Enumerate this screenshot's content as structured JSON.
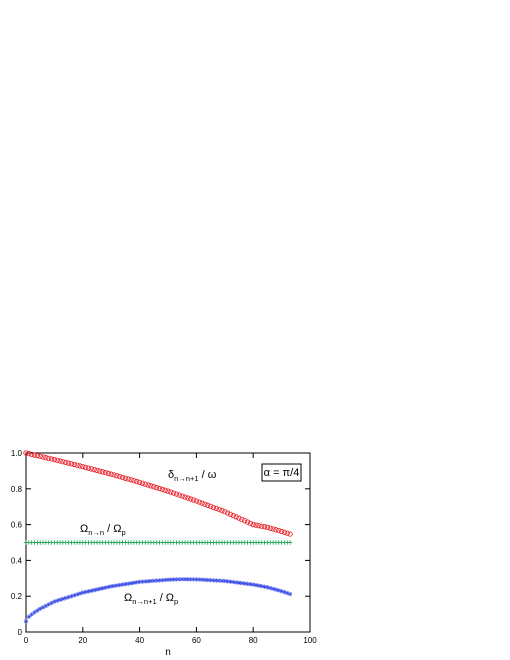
{
  "chart_data": {
    "type": "scatter",
    "title": "",
    "xlabel": "n",
    "ylabel": "",
    "xlim": [
      0,
      100
    ],
    "ylim": [
      0,
      1
    ],
    "x_ticks": [
      0,
      20,
      40,
      60,
      80,
      100
    ],
    "y_ticks": [
      0,
      0.2,
      0.4,
      0.6,
      0.8,
      1.0
    ],
    "x_tick_labels": [
      "0",
      "20",
      "40",
      "60",
      "80",
      "100"
    ],
    "y_tick_labels": [
      "0",
      "0.2",
      "0.4",
      "0.6",
      "0.8",
      "1.0"
    ],
    "grid": false,
    "legend": "none",
    "annotation_box": "α = π/4",
    "series": [
      {
        "label_main": "δ",
        "label_sub": "n→n+1",
        "label_rest": " / ω",
        "marker": "circle",
        "color": "#e8141c",
        "x": [
          0,
          10,
          20,
          30,
          40,
          50,
          60,
          70,
          80,
          85,
          90,
          93
        ],
        "y": [
          1.0,
          0.963,
          0.924,
          0.882,
          0.836,
          0.787,
          0.732,
          0.672,
          0.6,
          0.585,
          0.562,
          0.547
        ]
      },
      {
        "label_main": "Ω",
        "label_sub": "n→n",
        "label_rest": " / Ω",
        "label_sub2": "p",
        "marker": "plus",
        "color": "#14a050",
        "x": [
          0,
          93
        ],
        "y": [
          0.5,
          0.5
        ]
      },
      {
        "label_main": "Ω",
        "label_sub": "n→n+1",
        "label_rest": " / Ω",
        "label_sub2": "p",
        "marker": "star",
        "color": "#3c50e6",
        "x": [
          0,
          1,
          3,
          5,
          10,
          20,
          30,
          40,
          50,
          55,
          60,
          70,
          80,
          85,
          90,
          93
        ],
        "y": [
          0.06,
          0.085,
          0.11,
          0.13,
          0.17,
          0.22,
          0.255,
          0.28,
          0.292,
          0.295,
          0.294,
          0.285,
          0.265,
          0.25,
          0.228,
          0.212
        ]
      }
    ]
  }
}
